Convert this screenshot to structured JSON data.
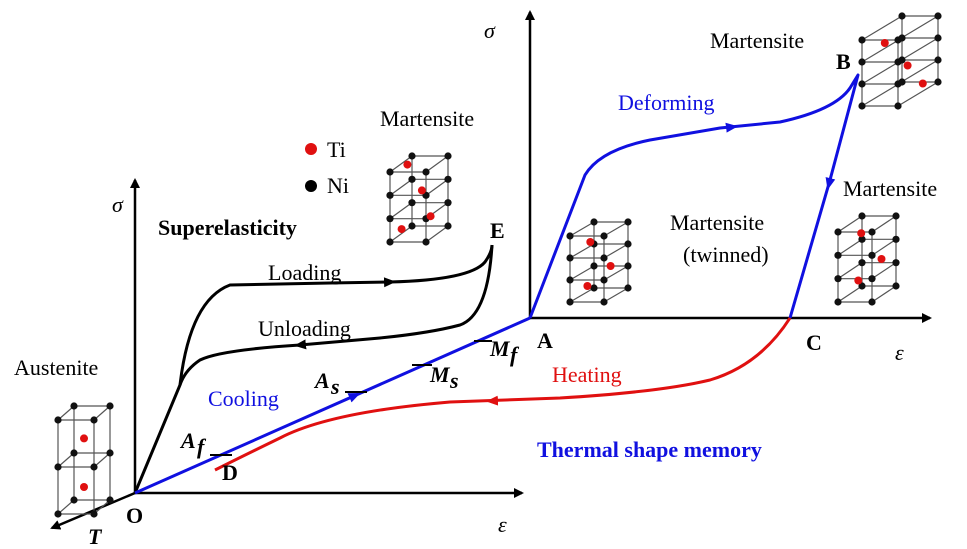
{
  "axes": {
    "left_sigma": "σ",
    "left_epsilon": "ε",
    "temperature": "T",
    "right_sigma": "σ",
    "right_epsilon": "ε"
  },
  "points": {
    "O": "O",
    "D": "D",
    "A": "A",
    "B": "B",
    "C": "C",
    "E": "E"
  },
  "legend": {
    "ti": "Ti",
    "ni": "Ni"
  },
  "phases": {
    "austenite": "Austenite",
    "martensite_top": "Martensite",
    "martensite_b": "Martensite",
    "martensite_right": "Martensite",
    "martensite_twinned": "Martensite",
    "twinned": "(twinned)"
  },
  "processes": {
    "superelasticity": "Superelasticity",
    "loading": "Loading",
    "unloading": "Unloading",
    "cooling": "Cooling",
    "heating": "Heating",
    "deforming": "Deforming",
    "thermal_shape_memory": "Thermal shape memory"
  },
  "temperatures": [
    {
      "symbol": "M",
      "subscript": "f"
    },
    {
      "symbol": "M",
      "subscript": "s"
    },
    {
      "symbol": "A",
      "subscript": "s"
    },
    {
      "symbol": "A",
      "subscript": "f"
    }
  ]
}
